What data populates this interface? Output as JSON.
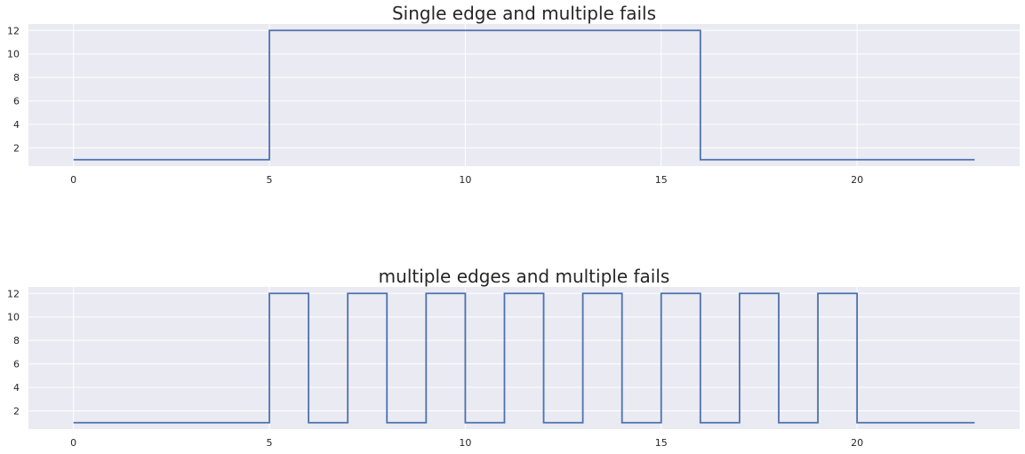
{
  "colors": {
    "axes_bg": "#EAEAF2",
    "grid": "#ffffff",
    "line": "#4C72B0",
    "text": "#262626"
  },
  "chart_data": [
    {
      "type": "line",
      "drawstyle": "steps-post",
      "title": "Single edge and multiple fails",
      "xlabel": "",
      "ylabel": "",
      "xlim": [
        -1.15,
        24.15
      ],
      "ylim": [
        0.45,
        12.55
      ],
      "xticks": [
        0,
        5,
        10,
        15,
        20
      ],
      "yticks": [
        2,
        4,
        6,
        8,
        10,
        12
      ],
      "grid": true,
      "x": [
        0,
        1,
        2,
        3,
        4,
        5,
        6,
        7,
        8,
        9,
        10,
        11,
        12,
        13,
        14,
        15,
        16,
        17,
        18,
        19,
        20,
        21,
        22,
        23
      ],
      "y": [
        1,
        1,
        1,
        1,
        1,
        12,
        12,
        12,
        12,
        12,
        12,
        12,
        12,
        12,
        12,
        12,
        1,
        1,
        1,
        1,
        1,
        1,
        1,
        1
      ]
    },
    {
      "type": "line",
      "drawstyle": "steps-post",
      "title": "multiple edges and multiple fails",
      "xlabel": "",
      "ylabel": "",
      "xlim": [
        -1.15,
        24.15
      ],
      "ylim": [
        0.45,
        12.55
      ],
      "xticks": [
        0,
        5,
        10,
        15,
        20
      ],
      "yticks": [
        2,
        4,
        6,
        8,
        10,
        12
      ],
      "grid": true,
      "x": [
        0,
        1,
        2,
        3,
        4,
        5,
        6,
        7,
        8,
        9,
        10,
        11,
        12,
        13,
        14,
        15,
        16,
        17,
        18,
        19,
        20,
        21,
        22,
        23
      ],
      "y": [
        1,
        1,
        1,
        1,
        1,
        12,
        1,
        12,
        1,
        12,
        1,
        12,
        1,
        12,
        1,
        12,
        1,
        12,
        1,
        12,
        1,
        1,
        1,
        1
      ]
    }
  ]
}
